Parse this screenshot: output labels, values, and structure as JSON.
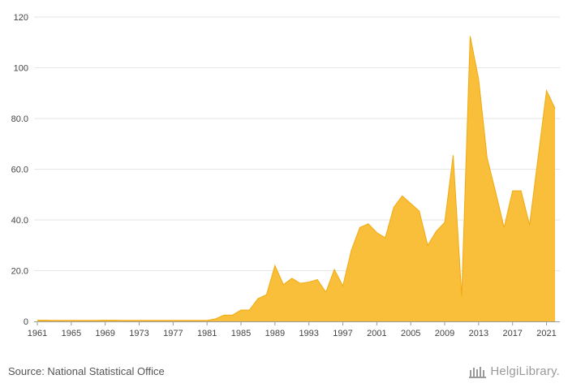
{
  "chart_data": {
    "type": "area",
    "title": "",
    "xlabel": "",
    "ylabel": "",
    "x": [
      1961,
      1962,
      1963,
      1964,
      1965,
      1966,
      1967,
      1968,
      1969,
      1970,
      1971,
      1972,
      1973,
      1974,
      1975,
      1976,
      1977,
      1978,
      1979,
      1980,
      1981,
      1982,
      1983,
      1984,
      1985,
      1986,
      1987,
      1988,
      1989,
      1990,
      1991,
      1992,
      1993,
      1994,
      1995,
      1996,
      1997,
      1998,
      1999,
      2000,
      2001,
      2002,
      2003,
      2004,
      2005,
      2006,
      2007,
      2008,
      2009,
      2010,
      2011,
      2012,
      2013,
      2014,
      2015,
      2016,
      2017,
      2018,
      2019,
      2020,
      2021,
      2022
    ],
    "series": [
      {
        "values": [
          0.5,
          0.5,
          0.4,
          0.4,
          0.4,
          0.4,
          0.4,
          0.4,
          0.5,
          0.5,
          0.4,
          0.4,
          0.4,
          0.4,
          0.4,
          0.4,
          0.4,
          0.4,
          0.4,
          0.4,
          0.4,
          1.0,
          2.5,
          2.5,
          4.5,
          4.5,
          9.0,
          10.5,
          22.0,
          14.5,
          17.0,
          15.0,
          15.5,
          16.5,
          11.5,
          20.5,
          14.0,
          28.0,
          37.0,
          38.5,
          35.0,
          33.0,
          45.0,
          49.5,
          46.5,
          43.5,
          30.0,
          35.5,
          39.0,
          65.5,
          10.0,
          112.5,
          95.5,
          64.5,
          51.0,
          37.0,
          51.5,
          51.5,
          38.0,
          64.5,
          91.0,
          84.0
        ]
      }
    ],
    "x_ticks": [
      "1961",
      "1965",
      "1969",
      "1973",
      "1977",
      "1981",
      "1985",
      "1989",
      "1993",
      "1997",
      "2001",
      "2005",
      "2009",
      "2013",
      "2017",
      "2021"
    ],
    "y_ticks": [
      "0",
      "20.0",
      "40.0",
      "60.0",
      "80.0",
      "100",
      "120"
    ],
    "ylim": [
      0,
      120
    ],
    "grid": "horizontal",
    "fill_color": "#f9bc2f",
    "line_color": "#f0aa10"
  },
  "footer": {
    "source": "Source: National Statistical Office",
    "logo_text": "HelgiLibrary."
  }
}
